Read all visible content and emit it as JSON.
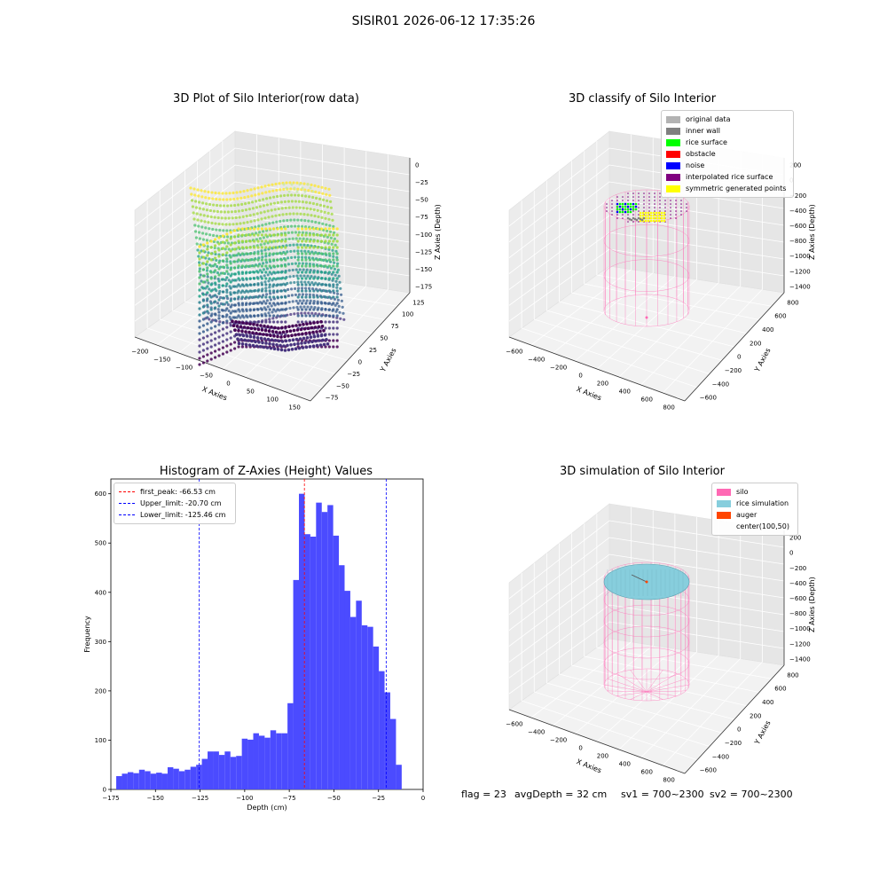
{
  "suptitle": "SISIR01 2026-06-12 17:35:26",
  "footer": {
    "flag": "flag = 23",
    "avg_depth": "avgDepth = 32 cm",
    "sv1": "sv1 = 700~2300",
    "sv2": "sv2 = 700~2300"
  },
  "colors": {
    "histogram": "#4b4bff",
    "first_peak": "#ff0000",
    "limits": "#0000ff",
    "silo": "#ff69b4",
    "rice_simulation": "#87cedd",
    "auger": "#ff4500"
  },
  "chart_data": [
    {
      "type": "scatter3d",
      "title": "3D Plot of Silo Interior(row data)",
      "xlabel": "X Axies",
      "ylabel": "Y Axies",
      "zlabel": "Z Axies (Depth)",
      "x_ticks": [
        "−200",
        "−150",
        "−100",
        "−50",
        "0",
        "50",
        "100",
        "150"
      ],
      "y_ticks": [
        "−75",
        "−50",
        "−25",
        "0",
        "25",
        "50",
        "75",
        "100",
        "125"
      ],
      "z_ticks": [
        "0",
        "−25",
        "−50",
        "−75",
        "−100",
        "−125",
        "−150",
        "−175"
      ],
      "colormap": "viridis",
      "zlim": [
        -175,
        0
      ]
    },
    {
      "type": "scatter3d",
      "title": "3D classify of Silo Interior",
      "xlabel": "X Axies",
      "ylabel": "Y Axies",
      "zlabel": "Z Axies (Depth)",
      "x_ticks": [
        "−600",
        "−400",
        "−200",
        "0",
        "200",
        "400",
        "600",
        "800"
      ],
      "y_ticks": [
        "−600",
        "−400",
        "−200",
        "0",
        "200",
        "400",
        "600",
        "800"
      ],
      "z_ticks": [
        "200",
        "0",
        "−200",
        "−400",
        "−600",
        "−800",
        "−1000",
        "−1200",
        "−1400"
      ],
      "legend": [
        {
          "label": "original data",
          "color": "#b3b3b3"
        },
        {
          "label": "inner wall",
          "color": "#808080"
        },
        {
          "label": "rice surface",
          "color": "#00ff00"
        },
        {
          "label": "obstacle",
          "color": "#ff0000"
        },
        {
          "label": "noise",
          "color": "#0000ff"
        },
        {
          "label": "interpolated rice surface",
          "color": "#800080"
        },
        {
          "label": "symmetric generated points",
          "color": "#ffff00"
        }
      ]
    },
    {
      "type": "bar",
      "title": "Histogram of Z-Axies (Height) Values",
      "xlabel": "Depth (cm)",
      "ylabel": "Frequency",
      "xlim": [
        -175,
        0
      ],
      "ylim": [
        0,
        630
      ],
      "x_ticks": [
        -175,
        -150,
        -125,
        -100,
        -75,
        -50,
        -25,
        0
      ],
      "x_tick_labels": [
        "−175",
        "−150",
        "−125",
        "−100",
        "−75",
        "−50",
        "−25",
        "0"
      ],
      "y_ticks": [
        0,
        100,
        200,
        300,
        400,
        500,
        600
      ],
      "bin_start": -172,
      "bin_width": 3.2,
      "values": [
        27,
        32,
        35,
        33,
        40,
        37,
        32,
        34,
        32,
        45,
        42,
        37,
        40,
        46,
        50,
        62,
        77,
        77,
        70,
        77,
        66,
        68,
        103,
        101,
        114,
        109,
        105,
        120,
        114,
        114,
        175,
        425,
        600,
        518,
        513,
        582,
        563,
        577,
        515,
        455,
        403,
        350,
        383,
        333,
        330,
        290,
        240,
        197,
        143,
        50
      ],
      "vlines": [
        {
          "x": -66.53,
          "label": "first_peak: -66.53 cm",
          "color": "#ff0000"
        },
        {
          "x": -20.7,
          "label": "Upper_limit: -20.70 cm",
          "color": "#0000ff"
        },
        {
          "x": -125.46,
          "label": "Lower_limit: -125.46 cm",
          "color": "#0000ff"
        }
      ]
    },
    {
      "type": "surface3d",
      "title": "3D simulation of Silo Interior",
      "xlabel": "X Axies",
      "ylabel": "Y Axies",
      "zlabel": "Z Axies (Depth)",
      "x_ticks": [
        "−600",
        "−400",
        "−200",
        "0",
        "200",
        "400",
        "600",
        "800"
      ],
      "y_ticks": [
        "−600",
        "−400",
        "−200",
        "0",
        "200",
        "400",
        "600",
        "800"
      ],
      "z_ticks": [
        "200",
        "0",
        "−200",
        "−400",
        "−600",
        "−800",
        "−1000",
        "−1200",
        "−1400"
      ],
      "legend": [
        {
          "label": "silo",
          "color": "#ff69b4"
        },
        {
          "label": "rice simulation",
          "color": "#87cedd"
        },
        {
          "label": "auger",
          "color": "#ff4500"
        },
        {
          "label": "center(100,50)",
          "color": ""
        }
      ]
    }
  ]
}
